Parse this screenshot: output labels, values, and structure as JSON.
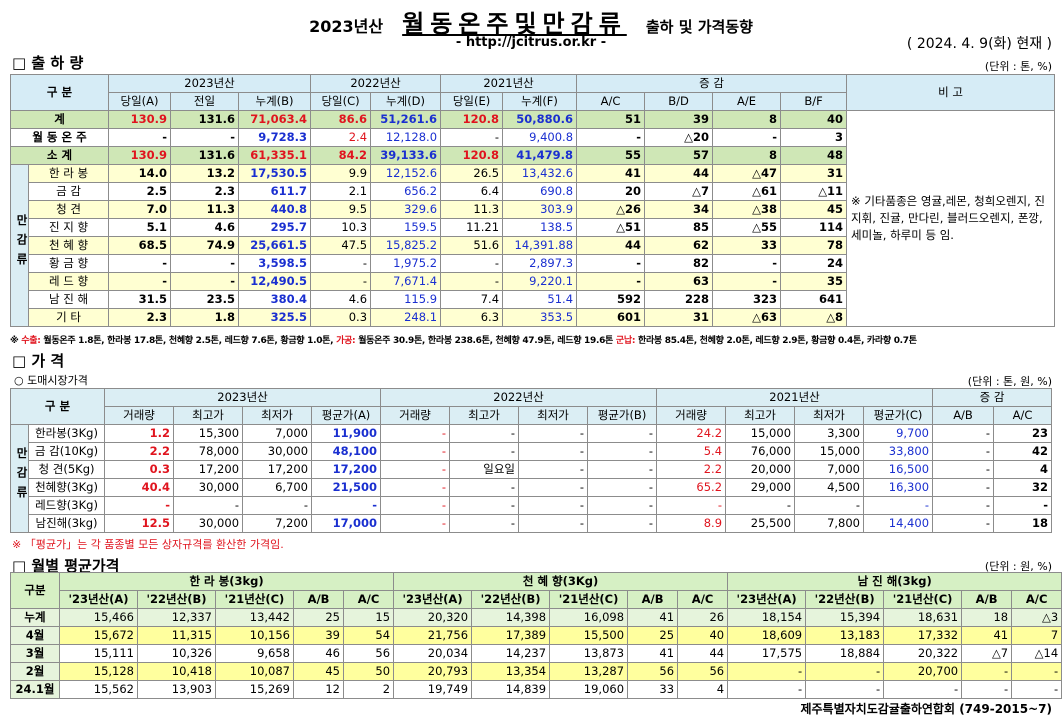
{
  "header": {
    "title_prefix": "2023년산",
    "title_main": "월동온주및만감류",
    "title_suffix": "출하 및 가격동향",
    "url": "- http://jcitrus.or.kr -",
    "date": "( 2024. 4. 9(화) 현재 )"
  },
  "shipment": {
    "heading": "□ 출 하 량",
    "unit": "(단위 : 톤, %)",
    "header_label": "구 분",
    "groups": [
      "2023년산",
      "2022년산",
      "2021년산",
      "증 감"
    ],
    "columns": [
      "당일(A)",
      "전일",
      "누계(B)",
      "당일(C)",
      "누계(D)",
      "당일(E)",
      "누계(F)",
      "A/C",
      "B/D",
      "A/E",
      "B/F"
    ],
    "remark_label": "비 고",
    "remark": "※ 기타품종은 영귤,레몬, 청희오렌지, 진지휘, 진귤, 만다린, 블러드오렌지, 폰깡,세미놀, 하루미 등 임.",
    "group_label": "만감류",
    "rows": [
      {
        "label": "계",
        "cells": [
          "130.9",
          "131.6",
          "71,063.4",
          "86.6",
          "51,261.6",
          "120.8",
          "50,880.6",
          "51",
          "39",
          "8",
          "40"
        ]
      },
      {
        "label": "월 동 온 주",
        "cells": [
          "-",
          "-",
          "9,728.3",
          "2.4",
          "12,128.0",
          "-",
          "9,400.8",
          "-",
          "△20",
          "-",
          "3"
        ]
      },
      {
        "label": "소 계",
        "cells": [
          "130.9",
          "131.6",
          "61,335.1",
          "84.2",
          "39,133.6",
          "120.8",
          "41,479.8",
          "55",
          "57",
          "8",
          "48"
        ]
      },
      {
        "label": "한 라 봉",
        "cells": [
          "14.0",
          "13.2",
          "17,530.5",
          "9.9",
          "12,152.6",
          "26.5",
          "13,432.6",
          "41",
          "44",
          "△47",
          "31"
        ]
      },
      {
        "label": "금 감",
        "cells": [
          "2.5",
          "2.3",
          "611.7",
          "2.1",
          "656.2",
          "6.4",
          "690.8",
          "20",
          "△7",
          "△61",
          "△11"
        ]
      },
      {
        "label": "청 견",
        "cells": [
          "7.0",
          "11.3",
          "440.8",
          "9.5",
          "329.6",
          "11.3",
          "303.9",
          "△26",
          "34",
          "△38",
          "45"
        ]
      },
      {
        "label": "진 지 향",
        "cells": [
          "5.1",
          "4.6",
          "295.7",
          "10.3",
          "159.5",
          "11.21",
          "138.5",
          "△51",
          "85",
          "△55",
          "114"
        ]
      },
      {
        "label": "천 혜 향",
        "cells": [
          "68.5",
          "74.9",
          "25,661.5",
          "47.5",
          "15,825.2",
          "51.6",
          "14,391.88",
          "44",
          "62",
          "33",
          "78"
        ]
      },
      {
        "label": "황 금 향",
        "cells": [
          "-",
          "-",
          "3,598.5",
          "-",
          "1,975.2",
          "-",
          "2,897.3",
          "-",
          "82",
          "-",
          "24"
        ]
      },
      {
        "label": "레 드 향",
        "cells": [
          "-",
          "-",
          "12,490.5",
          "-",
          "7,671.4",
          "-",
          "9,220.1",
          "-",
          "63",
          "-",
          "35"
        ]
      },
      {
        "label": "남 진 해",
        "cells": [
          "31.5",
          "23.5",
          "380.4",
          "4.6",
          "115.9",
          "7.4",
          "51.4",
          "592",
          "228",
          "323",
          "641"
        ]
      },
      {
        "label": "기 타",
        "cells": [
          "2.3",
          "1.8",
          "325.5",
          "0.3",
          "248.1",
          "6.3",
          "353.5",
          "601",
          "31",
          "△63",
          "△8"
        ]
      }
    ],
    "footnote": [
      "※ ",
      "수출:",
      " 월동온주 1.8톤, 한라봉 17.8톤, 천혜향 2.5톤, 레드향 7.6톤, 황금향 1.0톤, ",
      "가공:",
      " 월동온주 30.9톤, 한라봉 238.6톤, 천혜향 47.9톤, 레드향 19.6톤 ",
      "군납:",
      " 한라봉 85.4톤, 천혜향 2.0톤, 레드향 2.9톤, 황금향 0.4톤, 카라향 0.7톤"
    ]
  },
  "price": {
    "heading": "□ 가 격",
    "subheading": "○ 도매시장가격",
    "unit": "(단위 : 톤, 원, %)",
    "header_label": "구 분",
    "groups": [
      "2023년산",
      "2022년산",
      "2021년산",
      "증 감"
    ],
    "columns": [
      "거래량",
      "최고가",
      "최저가",
      "평균가(A)",
      "거래량",
      "최고가",
      "최저가",
      "평균가(B)",
      "거래량",
      "최고가",
      "최저가",
      "평균가(C)",
      "A/B",
      "A/C"
    ],
    "group_label": "만감류",
    "rows": [
      {
        "label": "한라봉(3Kg)",
        "cells": [
          "1.2",
          "15,300",
          "7,000",
          "11,900",
          "-",
          "-",
          "-",
          "-",
          "24.2",
          "15,000",
          "3,300",
          "9,700",
          "-",
          "23"
        ]
      },
      {
        "label": "금 감(10Kg)",
        "cells": [
          "2.2",
          "78,000",
          "30,000",
          "48,100",
          "-",
          "-",
          "-",
          "-",
          "5.4",
          "76,000",
          "15,000",
          "33,800",
          "-",
          "42"
        ]
      },
      {
        "label": "청 견(5Kg)",
        "cells": [
          "0.3",
          "17,200",
          "17,200",
          "17,200",
          "-",
          "일요일",
          "-",
          "-",
          "2.2",
          "20,000",
          "7,000",
          "16,500",
          "-",
          "4"
        ]
      },
      {
        "label": "천혜향(3Kg)",
        "cells": [
          "40.4",
          "30,000",
          "6,700",
          "21,500",
          "-",
          "-",
          "-",
          "-",
          "65.2",
          "29,000",
          "4,500",
          "16,300",
          "-",
          "32"
        ]
      },
      {
        "label": "레드향(3Kg)",
        "cells": [
          "-",
          "-",
          "-",
          "-",
          "-",
          "-",
          "-",
          "-",
          "-",
          "-",
          "-",
          "-",
          "-",
          "-"
        ]
      },
      {
        "label": "남진해(3kg)",
        "cells": [
          "12.5",
          "30,000",
          "7,200",
          "17,000",
          "-",
          "-",
          "-",
          "-",
          "8.9",
          "25,500",
          "7,800",
          "14,400",
          "-",
          "18"
        ]
      }
    ],
    "note": "※ 「평균가」는 각 품종별 모든 상자규격를 환산한 가격임."
  },
  "monthly": {
    "heading": "□ 월별 평균가격",
    "unit": "(단위 : 원, %)",
    "header_label": "구분",
    "groups": [
      "한 라 봉(3kg)",
      "천 혜 향(3Kg)",
      "남 진 해(3kg)"
    ],
    "columns": [
      "'23년산(A)",
      "'22년산(B)",
      "'21년산(C)",
      "A/B",
      "A/C"
    ],
    "rows": [
      {
        "label": "누계",
        "cells": [
          "15,466",
          "12,337",
          "13,442",
          "25",
          "15",
          "20,320",
          "14,398",
          "16,098",
          "41",
          "26",
          "18,154",
          "15,394",
          "18,631",
          "18",
          "△3"
        ]
      },
      {
        "label": "4월",
        "cells": [
          "15,672",
          "11,315",
          "10,156",
          "39",
          "54",
          "21,756",
          "17,389",
          "15,500",
          "25",
          "40",
          "18,609",
          "13,183",
          "17,332",
          "41",
          "7"
        ]
      },
      {
        "label": "3월",
        "cells": [
          "15,111",
          "10,326",
          "9,658",
          "46",
          "56",
          "20,034",
          "14,237",
          "13,873",
          "41",
          "44",
          "17,575",
          "18,884",
          "20,322",
          "△7",
          "△14"
        ]
      },
      {
        "label": "2월",
        "cells": [
          "15,128",
          "10,418",
          "10,087",
          "45",
          "50",
          "20,793",
          "13,354",
          "13,287",
          "56",
          "56",
          "-",
          "-",
          "20,700",
          "-",
          "-"
        ]
      },
      {
        "label": "24.1월",
        "cells": [
          "15,562",
          "13,903",
          "15,269",
          "12",
          "2",
          "19,749",
          "14,839",
          "19,060",
          "33",
          "4",
          "-",
          "-",
          "-",
          "-",
          "-"
        ]
      }
    ]
  },
  "footer": "제주특별자치도감귤출하연합회 (749-2015~7)"
}
